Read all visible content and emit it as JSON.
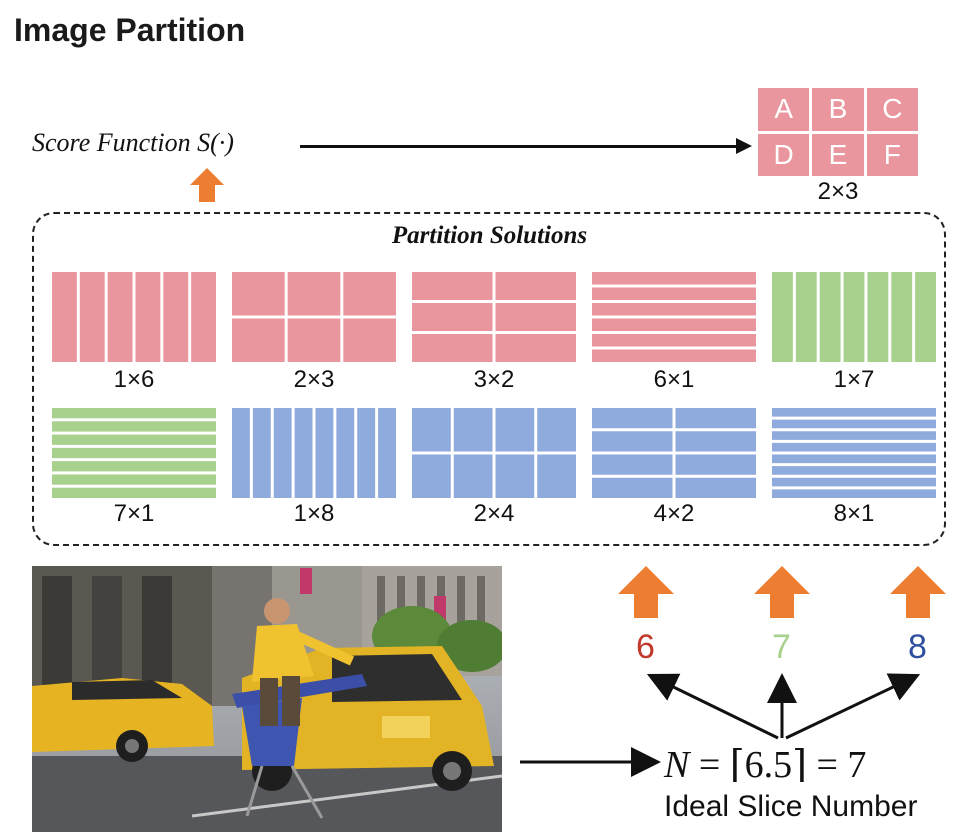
{
  "title": "Image Partition",
  "score_function": "Score Function S(·)",
  "selected": {
    "cells": [
      "A",
      "B",
      "C",
      "D",
      "E",
      "F"
    ],
    "label": "2×3",
    "color": "#e9969e"
  },
  "partition_solutions": {
    "title": "Partition Solutions",
    "items": [
      {
        "label": "1×6",
        "rows": 1,
        "cols": 6,
        "color": "#e9969e"
      },
      {
        "label": "2×3",
        "rows": 2,
        "cols": 3,
        "color": "#e9969e"
      },
      {
        "label": "3×2",
        "rows": 3,
        "cols": 2,
        "color": "#e9969e"
      },
      {
        "label": "6×1",
        "rows": 6,
        "cols": 1,
        "color": "#e9969e"
      },
      {
        "label": "1×7",
        "rows": 1,
        "cols": 7,
        "color": "#a9d18e"
      },
      {
        "label": "7×1",
        "rows": 7,
        "cols": 1,
        "color": "#a9d18e"
      },
      {
        "label": "1×8",
        "rows": 1,
        "cols": 8,
        "color": "#8faadc"
      },
      {
        "label": "2×4",
        "rows": 2,
        "cols": 4,
        "color": "#8faadc"
      },
      {
        "label": "4×2",
        "rows": 4,
        "cols": 2,
        "color": "#8faadc"
      },
      {
        "label": "8×1",
        "rows": 8,
        "cols": 1,
        "color": "#8faadc"
      }
    ]
  },
  "slice_candidates": [
    {
      "value": "6",
      "color": "#c0392b"
    },
    {
      "value": "7",
      "color": "#a9d18e"
    },
    {
      "value": "8",
      "color": "#2f4f9e"
    }
  ],
  "equation": {
    "var": "N",
    "rest": " = ⌈6.5⌉ = 7"
  },
  "ideal_label": "Ideal Slice Number",
  "arrow_color": "#ed7d31"
}
